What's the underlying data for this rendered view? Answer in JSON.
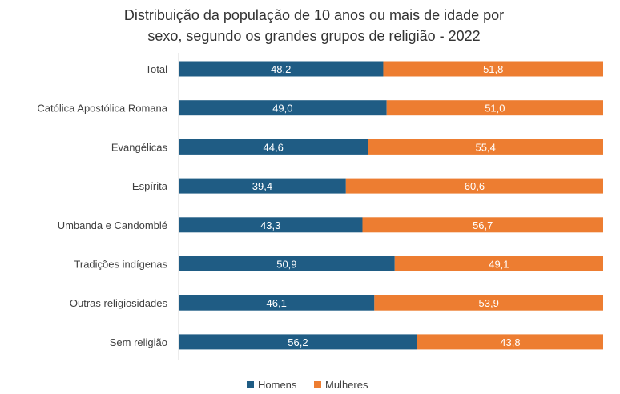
{
  "chart_data": {
    "type": "bar",
    "orientation": "horizontal",
    "stacked": true,
    "title_lines": [
      "Distribuição da população de 10 anos ou mais de idade por",
      "sexo, segundo os grandes grupos de religião - 2022"
    ],
    "categories": [
      "Total",
      "Católica Apostólica Romana",
      "Evangélicas",
      "Espírita",
      "Umbanda e Candomblé",
      "Tradições indígenas",
      "Outras religiosidades",
      "Sem religião"
    ],
    "series": [
      {
        "name": "Homens",
        "color": "#1f5c84",
        "values": [
          48.2,
          49.0,
          44.6,
          39.4,
          43.3,
          50.9,
          46.1,
          56.2
        ],
        "labels": [
          "48,2",
          "49,0",
          "44,6",
          "39,4",
          "43,3",
          "50,9",
          "46,1",
          "56,2"
        ]
      },
      {
        "name": "Mulheres",
        "color": "#ed7d31",
        "values": [
          51.8,
          51.0,
          55.4,
          60.6,
          56.7,
          49.1,
          53.9,
          43.8
        ],
        "labels": [
          "51,8",
          "51,0",
          "55,4",
          "60,6",
          "56,7",
          "49,1",
          "53,9",
          "43,8"
        ]
      }
    ],
    "xlim": [
      0,
      100
    ],
    "grid": false,
    "legend_position": "bottom"
  }
}
